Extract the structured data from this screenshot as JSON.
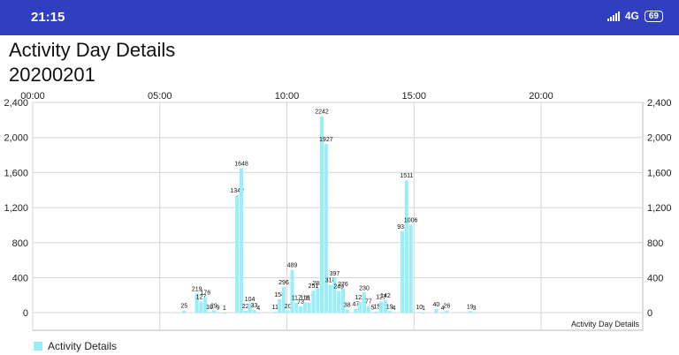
{
  "status": {
    "time": "21:15",
    "network": "4G",
    "battery": "69"
  },
  "header": {
    "title": "Activity Day Details",
    "date": "20200201"
  },
  "colors": {
    "bar": "#99eef8",
    "statusbar": "#2f3fbf",
    "grid": "#d6d6d6"
  },
  "chart_data": {
    "type": "bar",
    "title": "",
    "xlabel": "",
    "ylabel": "",
    "description_label": "Activity Day Details",
    "x_axis_position": "top",
    "x_ticks": [
      "00:00",
      "05:00",
      "10:00",
      "15:00",
      "20:00"
    ],
    "x_tick_positions": [
      0,
      60,
      120,
      180,
      240
    ],
    "x_range": [
      0,
      288
    ],
    "y_ticks": [
      "0",
      "400",
      "800",
      "1,200",
      "1,600",
      "2,000",
      "2,400"
    ],
    "ylim": [
      -200,
      2400
    ],
    "grid": true,
    "legend": "bottom-left",
    "series": [
      {
        "name": "Activity Details",
        "bars": [
          [
            71,
            25
          ],
          [
            77,
            219
          ],
          [
            79,
            127
          ],
          [
            81,
            176
          ],
          [
            83,
            10
          ],
          [
            85,
            29
          ],
          [
            87,
            9
          ],
          [
            90,
            1
          ],
          [
            96,
            1342
          ],
          [
            98,
            1648
          ],
          [
            100,
            22
          ],
          [
            102,
            104
          ],
          [
            104,
            33
          ],
          [
            106,
            4
          ],
          [
            114,
            11
          ],
          [
            116,
            154
          ],
          [
            118,
            296
          ],
          [
            120,
            20
          ],
          [
            122,
            489
          ],
          [
            124,
            117
          ],
          [
            126,
            73
          ],
          [
            128,
            116
          ],
          [
            130,
            117
          ],
          [
            132,
            251
          ],
          [
            134,
            283
          ],
          [
            136,
            2242
          ],
          [
            138,
            1927
          ],
          [
            140,
            318
          ],
          [
            142,
            397
          ],
          [
            144,
            249
          ],
          [
            146,
            276
          ],
          [
            148,
            38
          ],
          [
            152,
            47
          ],
          [
            154,
            123
          ],
          [
            156,
            230
          ],
          [
            158,
            77
          ],
          [
            160,
            5
          ],
          [
            162,
            15
          ],
          [
            164,
            127
          ],
          [
            166,
            142
          ],
          [
            168,
            19
          ],
          [
            170,
            4
          ],
          [
            174,
            931
          ],
          [
            176,
            1511
          ],
          [
            178,
            1006
          ],
          [
            182,
            10
          ],
          [
            184,
            1
          ],
          [
            190,
            40
          ],
          [
            193,
            4
          ],
          [
            195,
            26
          ],
          [
            206,
            19
          ],
          [
            208,
            3
          ]
        ]
      }
    ]
  }
}
